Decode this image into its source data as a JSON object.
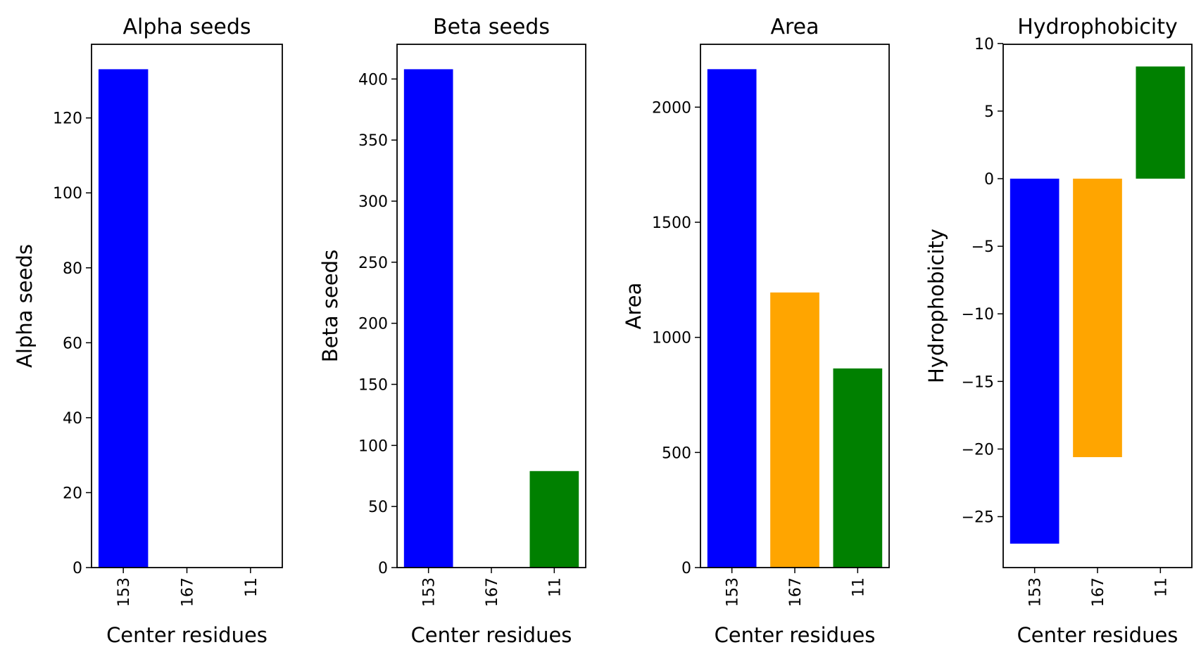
{
  "chart_data": [
    {
      "type": "bar",
      "title": "Alpha seeds",
      "xlabel": "Center residues",
      "ylabel": "Alpha seeds",
      "categories": [
        "153",
        "167",
        "11"
      ],
      "values": [
        133,
        0,
        0
      ],
      "colors": [
        "#0000ff",
        "#ffa500",
        "#008000"
      ],
      "ylim": [
        0,
        139.65
      ],
      "yticks": [
        0,
        20,
        40,
        60,
        80,
        100,
        120
      ],
      "ytick_labels": [
        "0",
        "20",
        "40",
        "60",
        "80",
        "100",
        "120"
      ],
      "grid": false
    },
    {
      "type": "bar",
      "title": "Beta seeds",
      "xlabel": "Center residues",
      "ylabel": "Beta seeds",
      "categories": [
        "153",
        "167",
        "11"
      ],
      "values": [
        408,
        0,
        79
      ],
      "colors": [
        "#0000ff",
        "#ffa500",
        "#008000"
      ],
      "ylim": [
        0,
        428.4
      ],
      "yticks": [
        0,
        50,
        100,
        150,
        200,
        250,
        300,
        350,
        400
      ],
      "ytick_labels": [
        "0",
        "50",
        "100",
        "150",
        "200",
        "250",
        "300",
        "350",
        "400"
      ],
      "grid": false
    },
    {
      "type": "bar",
      "title": "Area",
      "xlabel": "Center residues",
      "ylabel": "Area",
      "categories": [
        "153",
        "167",
        "11"
      ],
      "values": [
        2165,
        1195,
        865
      ],
      "colors": [
        "#0000ff",
        "#ffa500",
        "#008000"
      ],
      "ylim": [
        0,
        2273
      ],
      "yticks": [
        0,
        500,
        1000,
        1500,
        2000
      ],
      "ytick_labels": [
        "0",
        "500",
        "1000",
        "1500",
        "2000"
      ],
      "grid": false
    },
    {
      "type": "bar",
      "title": "Hydrophobicity",
      "xlabel": "Center residues",
      "ylabel": "Hydrophobicity",
      "categories": [
        "153",
        "167",
        "11"
      ],
      "values": [
        -27.0,
        -20.6,
        8.3
      ],
      "colors": [
        "#0000ff",
        "#ffa500",
        "#008000"
      ],
      "ylim": [
        -28.77,
        9.94
      ],
      "yticks": [
        -25,
        -20,
        -15,
        -10,
        -5,
        0,
        5,
        10
      ],
      "ytick_labels": [
        "−25",
        "−20",
        "−15",
        "−10",
        "−5",
        "0",
        "5",
        "10"
      ],
      "grid": false
    }
  ]
}
